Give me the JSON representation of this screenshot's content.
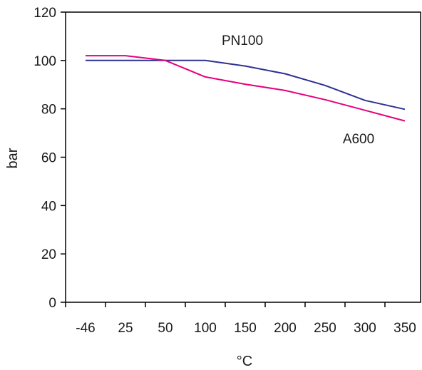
{
  "chart_data": {
    "type": "line",
    "title": "",
    "xlabel": "°C",
    "ylabel": "bar",
    "categories": [
      "-46",
      "25",
      "50",
      "100",
      "150",
      "200",
      "250",
      "300",
      "350"
    ],
    "ylim": [
      0,
      120
    ],
    "yticks": [
      0,
      20,
      40,
      60,
      80,
      100,
      120
    ],
    "grid": false,
    "series": [
      {
        "name": "PN100",
        "color": "#2e3192",
        "values": [
          100,
          100,
          100,
          100,
          97.7,
          94.5,
          89.7,
          83.5,
          79.8
        ]
      },
      {
        "name": "A600",
        "color": "#e6007e",
        "values": [
          102,
          102,
          100,
          93.2,
          90.2,
          87.6,
          83.8,
          79.4,
          75
        ]
      }
    ]
  }
}
